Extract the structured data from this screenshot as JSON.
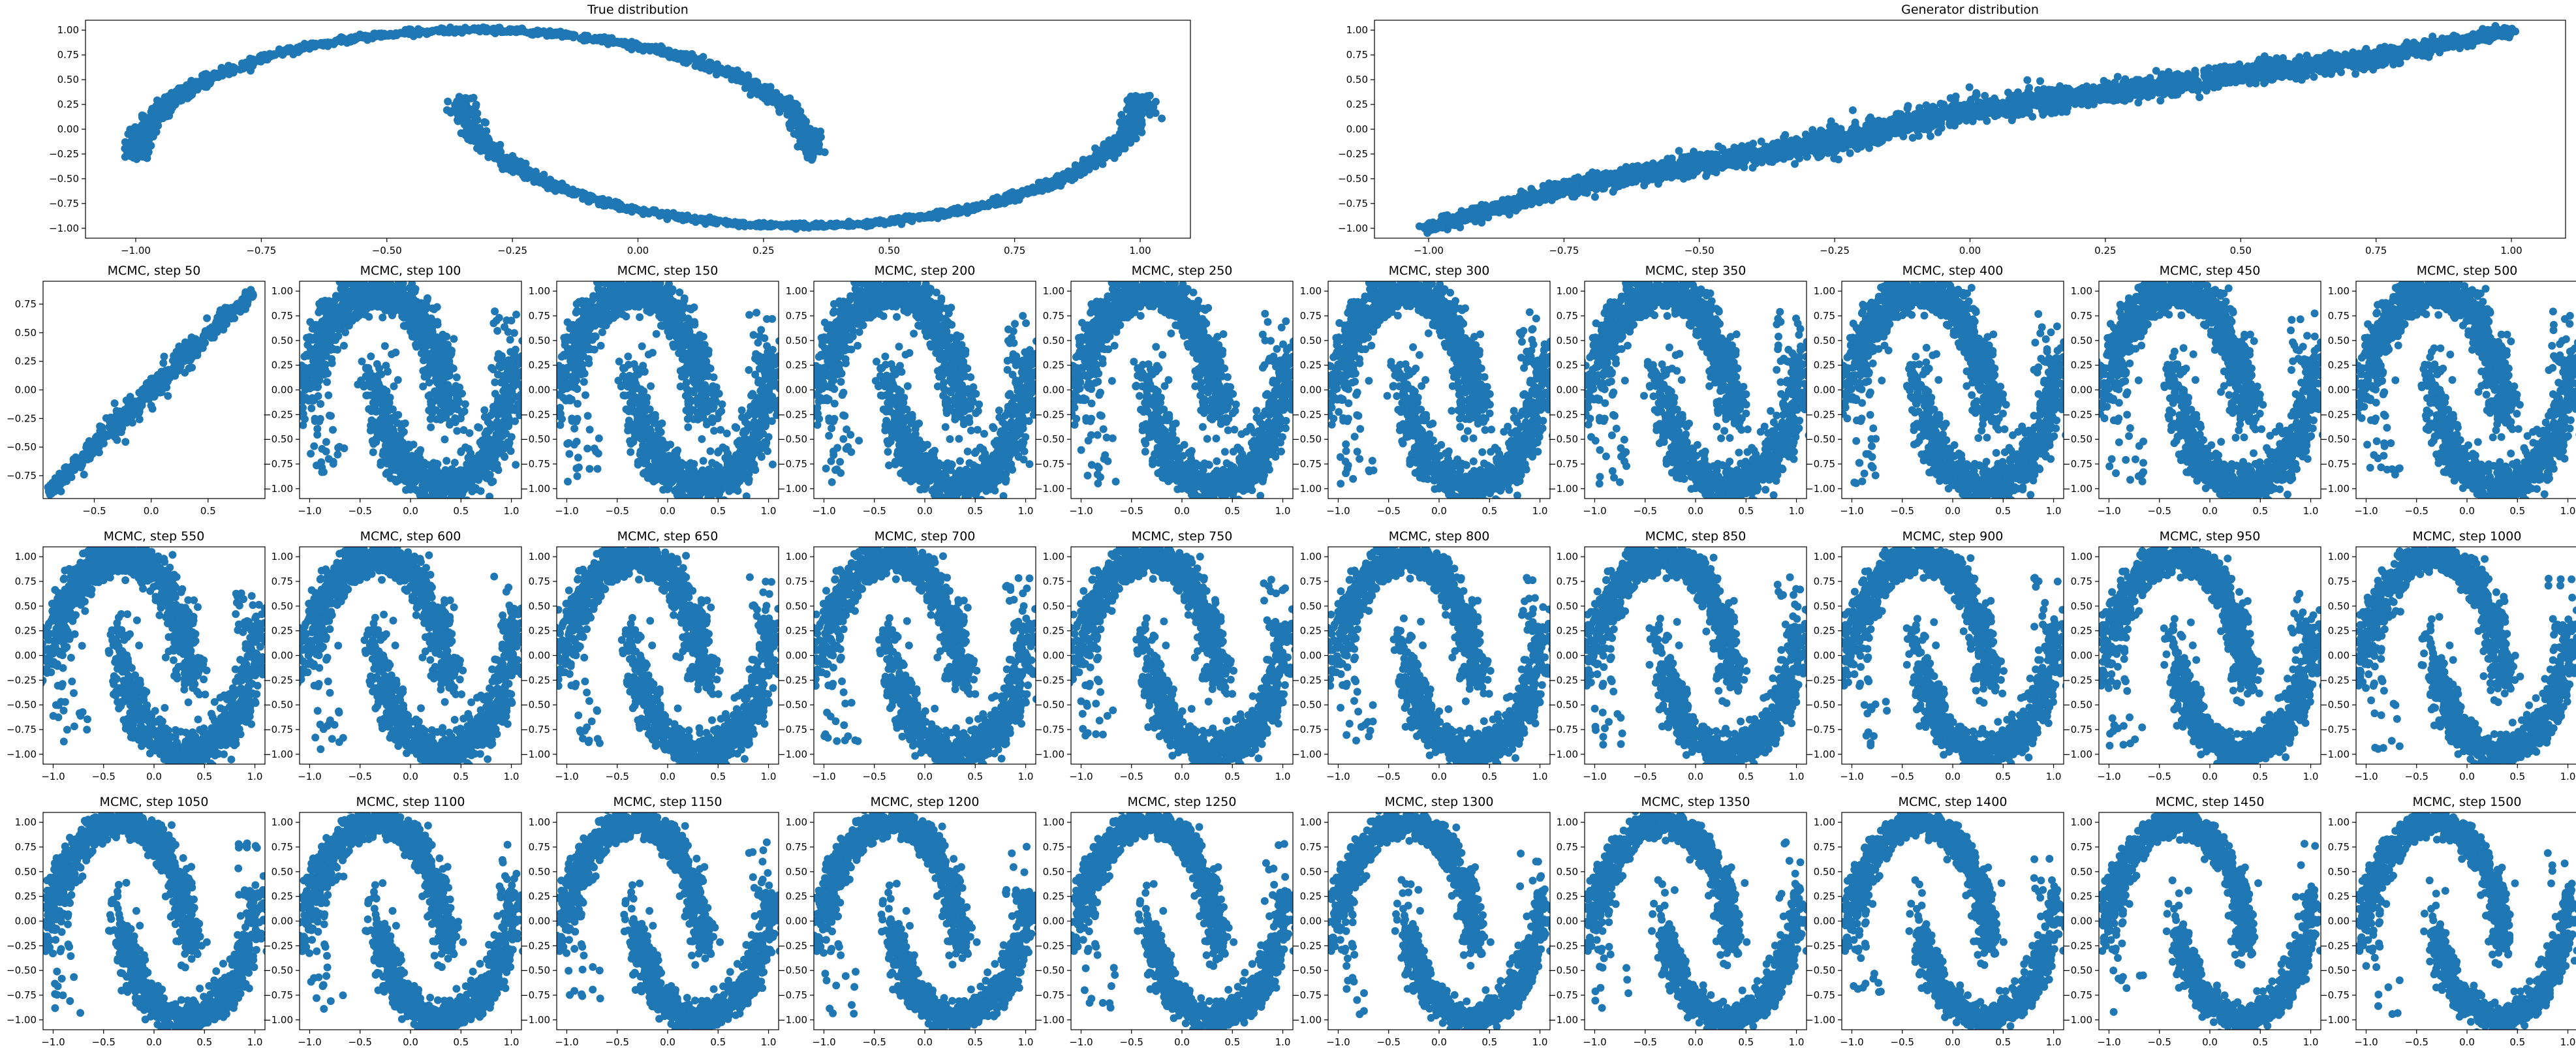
{
  "chart_data": {
    "type": "scatter",
    "layout": "2 wide panels on top, 3 rows of 10 square panels below",
    "marker_color": "#1f77b4",
    "grid": false,
    "legend": "none",
    "top_panels": [
      {
        "id": "true",
        "title": "True distribution",
        "shape": "two-moons",
        "xlim": [
          -1.1,
          1.1
        ],
        "ylim": [
          -1.1,
          1.1
        ],
        "xticks": [
          -1.0,
          -0.75,
          -0.5,
          -0.25,
          0.0,
          0.25,
          0.5,
          0.75,
          1.0
        ],
        "yticks": [
          -1.0,
          -0.75,
          -0.5,
          -0.25,
          0.0,
          0.25,
          0.5,
          0.75,
          1.0
        ],
        "upper_moon": {
          "center": [
            -0.325,
            -0.3
          ],
          "x_radius": 0.675,
          "y_radius": 1.3
        },
        "lower_moon": {
          "center": [
            0.325,
            0.325
          ],
          "x_radius": 0.675,
          "y_radius": 1.3
        }
      },
      {
        "id": "generator",
        "title": "Generator distribution",
        "shape": "curved band from (-1.0, -1.0) to (1.0, 1.0)",
        "xlim": [
          -1.1,
          1.1
        ],
        "ylim": [
          -1.1,
          1.1
        ],
        "xticks": [
          -1.0,
          -0.75,
          -0.5,
          -0.25,
          0.0,
          0.25,
          0.5,
          0.75,
          1.0
        ],
        "yticks": [
          -1.0,
          -0.75,
          -0.5,
          -0.25,
          0.0,
          0.25,
          0.5,
          0.75,
          1.0
        ],
        "curve": [
          [
            -1.0,
            -1.0
          ],
          [
            -0.75,
            -0.6
          ],
          [
            -0.5,
            -0.35
          ],
          [
            -0.25,
            -0.12
          ],
          [
            0.0,
            0.2
          ],
          [
            0.25,
            0.35
          ],
          [
            0.5,
            0.55
          ],
          [
            0.75,
            0.72
          ],
          [
            1.0,
            1.0
          ]
        ]
      }
    ],
    "mcmc_panels": {
      "title_prefix": "MCMC, step ",
      "steps": [
        50,
        100,
        150,
        200,
        250,
        300,
        350,
        400,
        450,
        500,
        550,
        600,
        650,
        700,
        750,
        800,
        850,
        900,
        950,
        1000,
        1050,
        1100,
        1150,
        1200,
        1250,
        1300,
        1350,
        1400,
        1450,
        1500
      ],
      "columns": 10,
      "rows": 3,
      "xlim": [
        -1.1,
        1.1
      ],
      "ylim": [
        -1.1,
        1.1
      ],
      "xticks": [
        -1.0,
        -0.5,
        0.0,
        0.5,
        1.0
      ],
      "yticks": [
        -1.0,
        -0.75,
        -0.5,
        -0.25,
        0.0,
        0.25,
        0.5,
        0.75,
        1.0
      ],
      "first_step": {
        "step": 50,
        "xlim": [
          -0.95,
          1.0
        ],
        "ylim": [
          -0.95,
          0.95
        ],
        "xticks": [
          -0.5,
          0.0,
          0.5
        ],
        "yticks": [
          -0.75,
          -0.5,
          -0.25,
          0.0,
          0.25,
          0.5,
          0.75
        ],
        "shape": "diagonal band from (-0.9, -0.9) to (0.9, 0.85)"
      }
    }
  }
}
